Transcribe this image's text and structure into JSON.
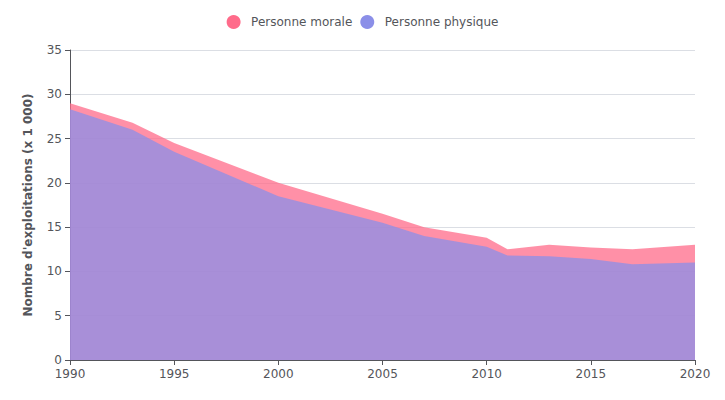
{
  "chart_data": {
    "type": "area",
    "x": [
      1990,
      1993,
      1995,
      2000,
      2005,
      2007,
      2010,
      2011,
      2013,
      2015,
      2017,
      2020
    ],
    "series": [
      {
        "name": "Personne morale",
        "color": "#FF6B8A",
        "values": [
          29.0,
          26.8,
          24.5,
          20.0,
          16.5,
          15.0,
          13.8,
          12.5,
          13.0,
          12.7,
          12.5,
          13.0
        ]
      },
      {
        "name": "Personne physique",
        "color": "#8B8FE8",
        "values": [
          28.3,
          26.0,
          23.5,
          18.5,
          15.5,
          14.0,
          12.8,
          11.8,
          11.7,
          11.4,
          10.8,
          11.0
        ]
      }
    ],
    "ylabel": "Nombre d'exploitations (x 1 000)",
    "xlim": [
      1990,
      2020
    ],
    "ylim": [
      0,
      35
    ],
    "xticks": [
      1990,
      1995,
      2000,
      2005,
      2010,
      2015,
      2020
    ],
    "yticks": [
      0,
      5,
      10,
      15,
      20,
      25,
      30,
      35
    ],
    "grid": true,
    "legend": "top"
  }
}
